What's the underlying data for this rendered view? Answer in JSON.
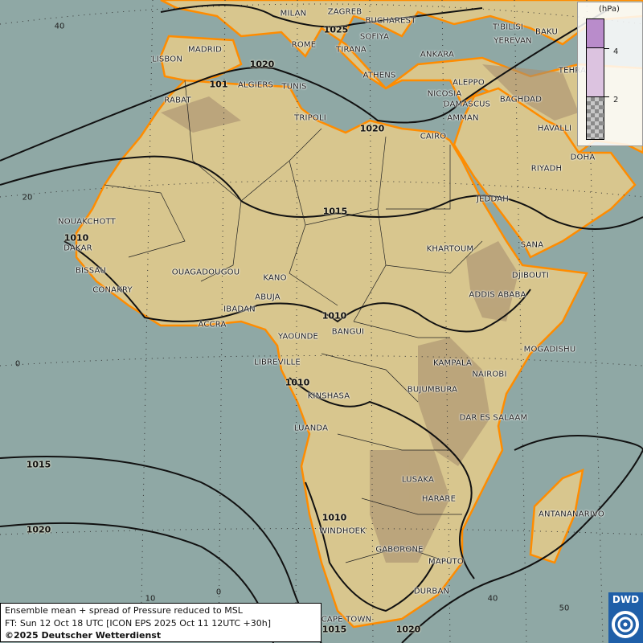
{
  "colors": {
    "sea": "#8fa8a5",
    "land": "#d8c68e",
    "highland": "#a89070",
    "coast": "#ff8c00",
    "isobar": "#111111",
    "spread_4plus": "#b98ccb",
    "spread_2_4": "#dcc3e0",
    "logo": "#1f5fa8"
  },
  "legend": {
    "unit": "(hPa)",
    "ticks": [
      "4",
      "2"
    ],
    "classes": [
      ">4",
      "2-4",
      "<2 (hatched)"
    ]
  },
  "info": {
    "line1": "Ensemble mean + spread of Pressure reduced to MSL",
    "line2": "FT: Sun 12 Oct 18 UTC [ICON EPS 2025 Oct 11 12UTC +30h]",
    "line3": "©2025 Deutscher Wetterdienst"
  },
  "logo": {
    "text": "DWD",
    "icon": "dwd-swirl-icon"
  },
  "lat_labels": [
    "40",
    "20",
    "0"
  ],
  "lon_labels": [
    "10",
    "0",
    "40",
    "50",
    "10"
  ],
  "isobar_labels": [
    "1025",
    "1020",
    "1020",
    "1015",
    "1010",
    "1010",
    "1010",
    "1015",
    "1020",
    "1010",
    "1015",
    "1020",
    "101"
  ],
  "cities": [
    "MILAN",
    "ZAGREB",
    "BUCHAREST",
    "SOFIYA",
    "ROME",
    "TIRANA",
    "ATHENS",
    "MADRID",
    "LISBON",
    "ALGIERS",
    "TUNIS",
    "RABAT",
    "TRIPOLI",
    "ANKARA",
    "T'BILISI",
    "BAKU",
    "YEREVAN",
    "TEHRA",
    "ALEPPO",
    "NICOSIA",
    "DAMASCUS",
    "AMMAN",
    "BAGHDAD",
    "HAVALLI",
    "DOHA",
    "RIYADH",
    "CAIRO",
    "JEDDAH",
    "SANA",
    "KHARTOUM",
    "DJIBOUTI",
    "ADDIS ABABA",
    "MOGADISHU",
    "KAMPALA",
    "NAIROBI",
    "BUJUMBURA",
    "DAR ES SALAAM",
    "LUSAKA",
    "HARARE",
    "ANTANANARIVO",
    "GABORONE",
    "MAPUTO",
    "DURBAN",
    "CAPE TOWN",
    "WINDHOEK",
    "LUANDA",
    "KINSHASA",
    "LIBREVILLE",
    "YAOUNDE",
    "BANGUI",
    "ABUJA",
    "KANO",
    "IBADAN",
    "ACCRA",
    "OUAGADOUGOU",
    "CONAKRY",
    "BISSAU",
    "DAKAR",
    "NOUAKCHOTT"
  ]
}
